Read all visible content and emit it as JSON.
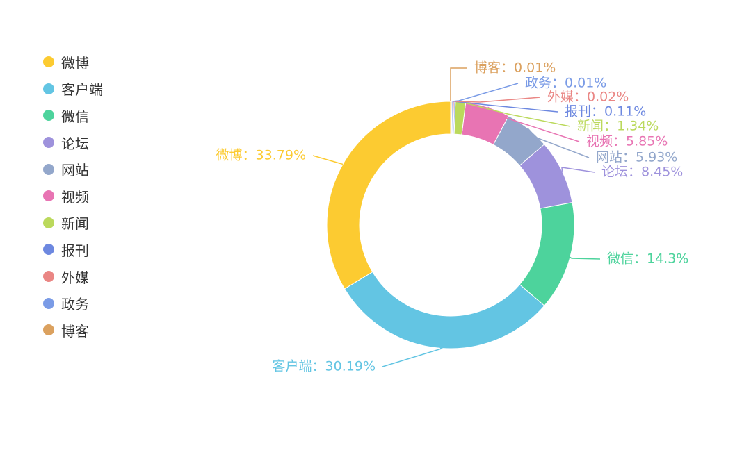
{
  "chart_data": {
    "type": "pie",
    "donut": true,
    "legend_position": "left",
    "slices": [
      {
        "name": "微博",
        "value": 33.79,
        "label": "微博：33.79%",
        "color": "#fccb31"
      },
      {
        "name": "客户端",
        "value": 30.19,
        "label": "客户端：30.19%",
        "color": "#63c5e3"
      },
      {
        "name": "微信",
        "value": 14.3,
        "label": "微信：14.3%",
        "color": "#4dd39c"
      },
      {
        "name": "论坛",
        "value": 8.45,
        "label": "论坛：8.45%",
        "color": "#9e92dc"
      },
      {
        "name": "网站",
        "value": 5.93,
        "label": "网站：5.93%",
        "color": "#93a7cb"
      },
      {
        "name": "视频",
        "value": 5.85,
        "label": "视频：5.85%",
        "color": "#e874b3"
      },
      {
        "name": "新闻",
        "value": 1.34,
        "label": "新闻：1.34%",
        "color": "#bbd95c"
      },
      {
        "name": "报刊",
        "value": 0.11,
        "label": "报刊：0.11%",
        "color": "#6d88e0"
      },
      {
        "name": "外媒",
        "value": 0.02,
        "label": "外媒：0.02%",
        "color": "#ea8684"
      },
      {
        "name": "政务",
        "value": 0.01,
        "label": "政务：0.01%",
        "color": "#7a9be6"
      },
      {
        "name": "博客",
        "value": 0.01,
        "label": "博客：0.01%",
        "color": "#dba15f"
      }
    ]
  }
}
